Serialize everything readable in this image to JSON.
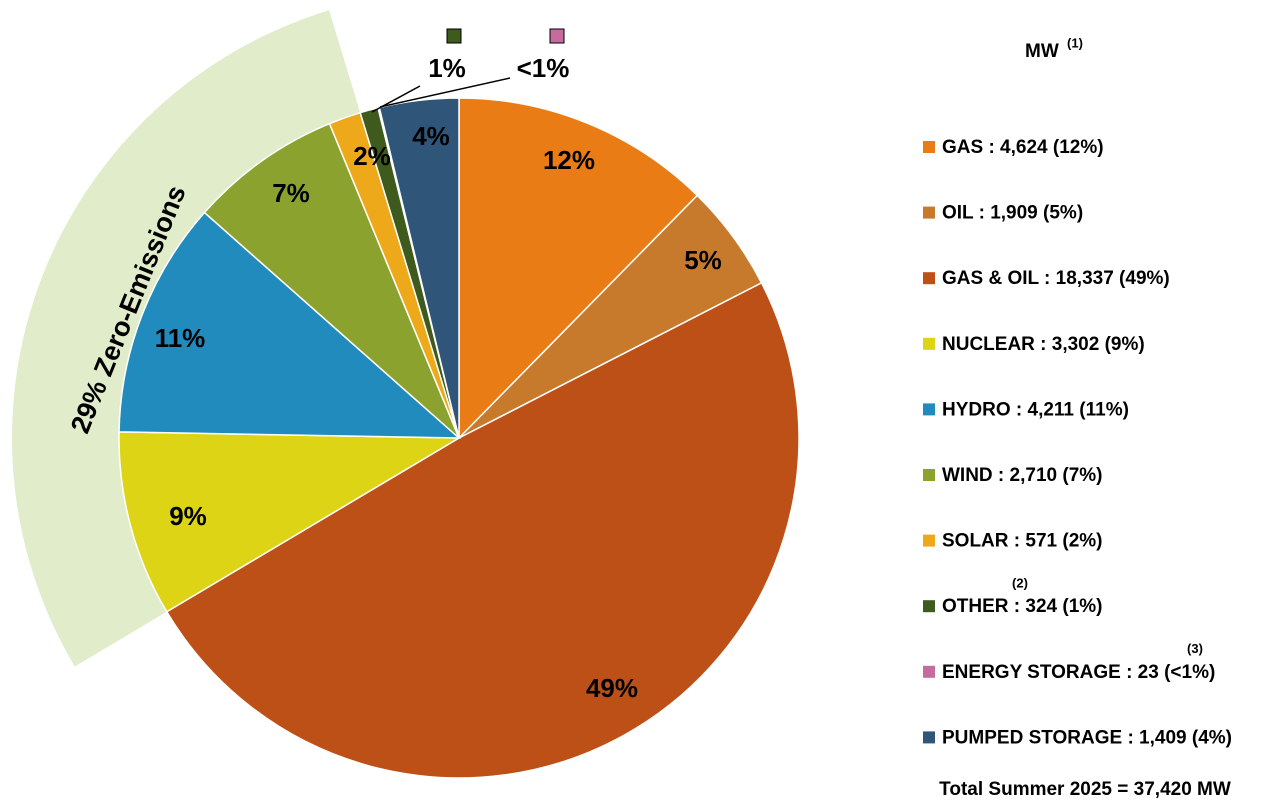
{
  "chart_data": {
    "type": "pie",
    "categories": [
      "GAS : 4,624 (12%)",
      "OIL : 1,909 (5%)",
      "GAS & OIL : 18,337 (49%)",
      "NUCLEAR : 3,302 (9%)",
      "HYDRO : 4,211 (11%)",
      "WIND : 2,710 (7%)",
      "SOLAR : 571 (2%)",
      "OTHER : 324 (1%)",
      "ENERGY STORAGE : 23 (<1%)",
      "PUMPED STORAGE : 1,409 (4%)"
    ],
    "values": [
      4624,
      1909,
      18337,
      3302,
      4211,
      2710,
      571,
      324,
      23,
      1409
    ],
    "value_labels": [
      "12%",
      "5%",
      "49%",
      "9%",
      "11%",
      "7%",
      "2%",
      "1%",
      "<1%",
      "4%"
    ],
    "colors": [
      "#e97c14",
      "#c77a2c",
      "#bd5016",
      "#dcd414",
      "#228bbd",
      "#8ca22e",
      "#eda91a",
      "#3e5a1d",
      "#c56b9d",
      "#2f5578"
    ],
    "legend_notes": [
      null,
      null,
      null,
      null,
      null,
      null,
      null,
      "(2)",
      "(3)",
      null
    ],
    "legend_title": "MW",
    "legend_title_note": "(1)",
    "band_label": "29%  Zero-Emissions",
    "band_color": "#e1ecca",
    "band_label_color": "#6aad1e",
    "total_label": "Total Summer 2025 = 37,420 MW"
  }
}
